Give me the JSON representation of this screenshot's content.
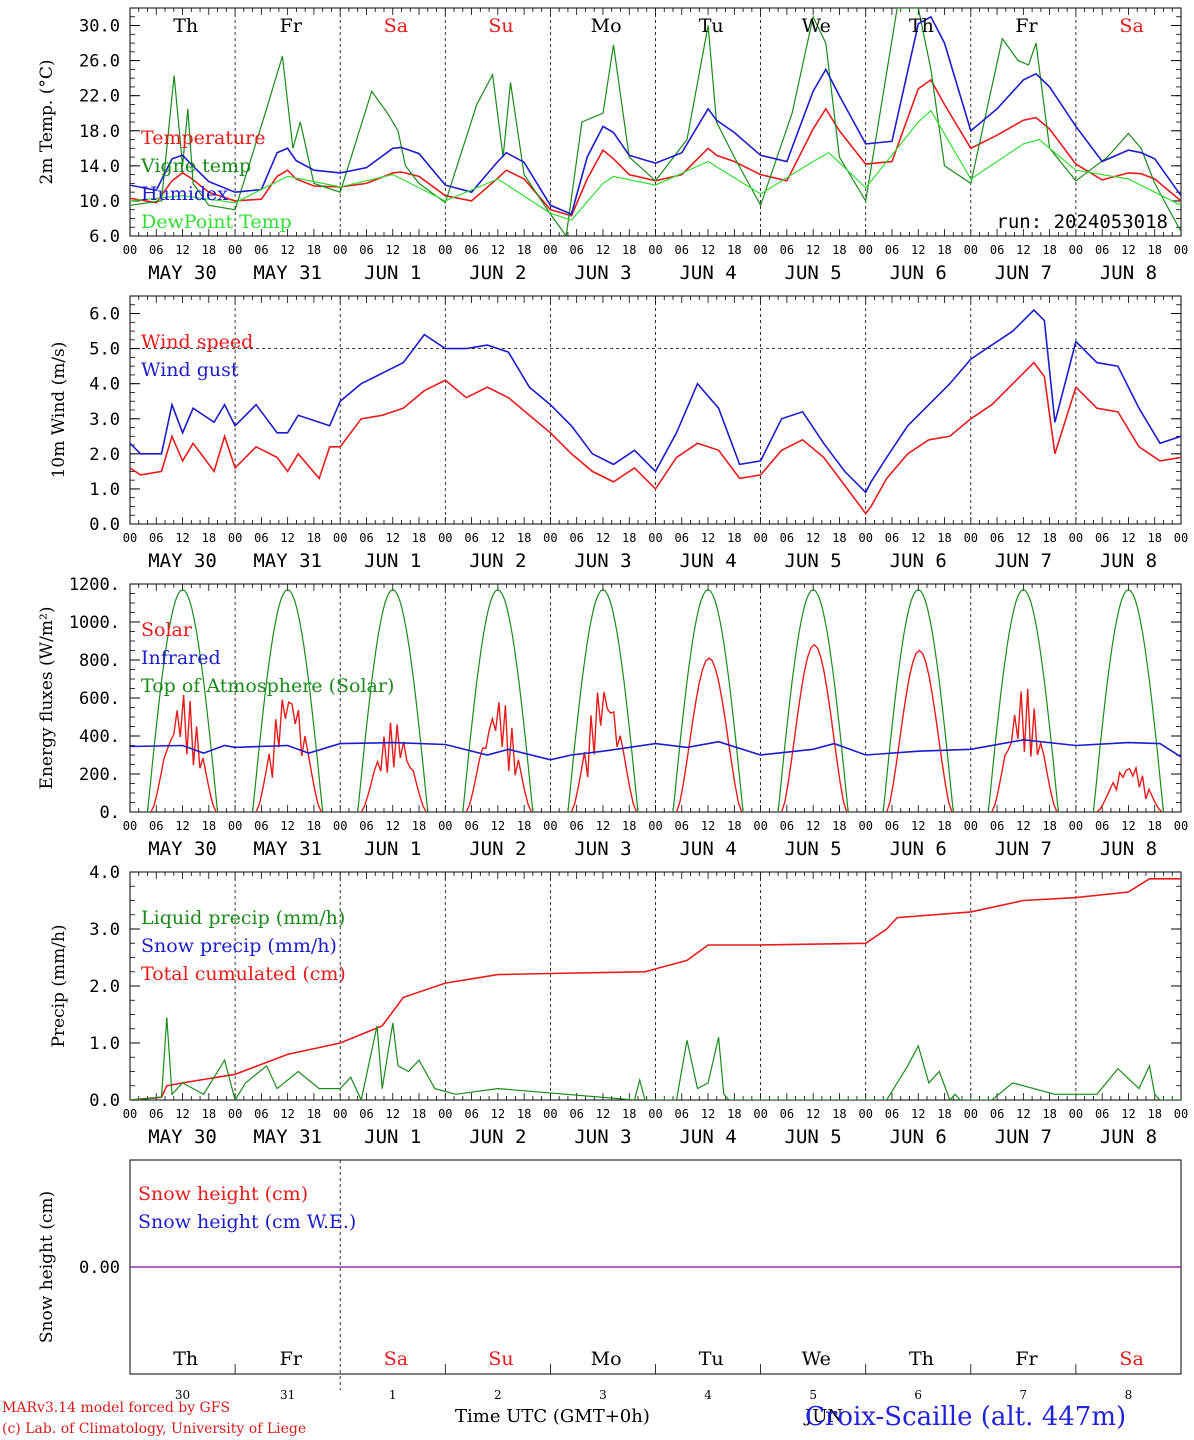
{
  "colors": {
    "red": "#e81b1b",
    "green": "#1a8a1a",
    "blue": "#1c1ccc",
    "lightgreen": "#33dd33",
    "purple": "#8833aa"
  },
  "days": [
    "Th",
    "Fr",
    "Sa",
    "Su",
    "Mo",
    "Tu",
    "We",
    "Th",
    "Fr",
    "Sa"
  ],
  "weekend_days": [
    "Sa",
    "Su"
  ],
  "hour_ticks": [
    "00",
    "06",
    "12",
    "18"
  ],
  "date_labels": [
    "MAY 30",
    "MAY 31",
    "JUN  1",
    "JUN  2",
    "JUN  3",
    "JUN  4",
    "JUN  5",
    "JUN  6",
    "JUN  7",
    "JUN  8"
  ],
  "snow_day_numbers": [
    "30",
    "31",
    "1",
    "2",
    "3",
    "4",
    "5",
    "6",
    "7",
    "8"
  ],
  "run_label": "run: 2024053018",
  "footer": {
    "model_line1": "MARv3.14 model forced by GFS",
    "model_line2": "(c) Lab. of Climatology, University of Liege",
    "time_label": "Time UTC (GMT+0h)",
    "month_label": "JUN",
    "station": "Croix-Scaille (alt. 447m)"
  },
  "chart_data": [
    {
      "id": "temperature",
      "type": "line",
      "ylabel": "2m Temp. (°C)",
      "ylim": [
        6.0,
        32.0
      ],
      "yticks": [
        6.0,
        10.0,
        14.0,
        18.0,
        22.0,
        26.0,
        30.0
      ],
      "ytick_labels": [
        "6.0",
        "10.0",
        "14.0",
        "18.0",
        "22.0",
        "26.0",
        "30.0"
      ],
      "xlim_days": [
        0,
        10
      ],
      "legend": [
        "Temperature",
        "Vigne temp",
        "Humidex",
        "DewPoint Temp"
      ],
      "series": [
        {
          "name": "Temperature",
          "color": "red",
          "x": [
            0,
            0.25,
            0.4,
            0.5,
            0.58,
            0.75,
            1,
            1.25,
            1.4,
            1.5,
            1.58,
            1.75,
            2,
            2.25,
            2.5,
            2.58,
            2.75,
            3,
            3.25,
            3.5,
            3.58,
            3.75,
            4,
            4.2,
            4.35,
            4.5,
            4.6,
            4.75,
            5,
            5.25,
            5.5,
            5.58,
            5.75,
            6,
            6.25,
            6.5,
            6.62,
            6.75,
            7,
            7.25,
            7.5,
            7.62,
            7.75,
            8,
            8.25,
            8.5,
            8.62,
            8.75,
            9,
            9.25,
            9.5,
            9.62,
            9.75,
            10
          ],
          "values": [
            10.3,
            9.8,
            12.3,
            13.2,
            12.6,
            11,
            10,
            10.2,
            12.8,
            13.5,
            12.5,
            11.7,
            11.6,
            12,
            13.2,
            13.3,
            12.8,
            10.6,
            10,
            12.6,
            13.5,
            12.5,
            9,
            8.3,
            12.5,
            15.8,
            14.8,
            13,
            12.3,
            13,
            16,
            15.2,
            14.5,
            13,
            12.3,
            18.2,
            20.5,
            18,
            14.2,
            14.5,
            22.8,
            23.8,
            21,
            16,
            17.5,
            19.2,
            19.5,
            18.2,
            14.2,
            12.4,
            13.2,
            13.1,
            12.5,
            10
          ]
        },
        {
          "name": "Vigne temp",
          "color": "green",
          "x": [
            0,
            0.3,
            0.42,
            0.5,
            0.55,
            0.6,
            0.75,
            1,
            1.3,
            1.45,
            1.55,
            1.62,
            1.75,
            2,
            2.3,
            2.45,
            2.55,
            2.62,
            2.75,
            3,
            3.3,
            3.45,
            3.55,
            3.62,
            3.75,
            4,
            4.15,
            4.3,
            4.5,
            4.6,
            4.75,
            5,
            5.3,
            5.5,
            5.58,
            5.75,
            6,
            6.3,
            6.5,
            6.62,
            6.75,
            7,
            7.3,
            7.5,
            7.62,
            7.75,
            8,
            8.3,
            8.45,
            8.55,
            8.62,
            8.75,
            9,
            9.3,
            9.5,
            9.62,
            9.75,
            10
          ],
          "values": [
            9.5,
            10,
            24.3,
            14,
            20.5,
            12,
            9.5,
            9,
            20.5,
            26.5,
            16,
            19,
            12,
            11,
            22.5,
            20,
            18,
            14,
            12,
            9.8,
            21,
            24.4,
            15,
            23.5,
            13,
            8.5,
            6,
            19,
            20,
            27.8,
            15,
            12.3,
            17,
            30,
            19,
            15,
            9.5,
            20,
            31,
            28,
            15,
            10,
            32,
            32,
            25,
            14,
            12,
            28.5,
            26,
            25.5,
            28,
            16,
            12.3,
            15,
            17.7,
            16,
            12,
            6.5
          ]
        },
        {
          "name": "Humidex",
          "color": "blue",
          "x": [
            0,
            0.25,
            0.4,
            0.5,
            0.58,
            0.75,
            1,
            1.25,
            1.4,
            1.5,
            1.58,
            1.75,
            2,
            2.25,
            2.5,
            2.58,
            2.75,
            3,
            3.25,
            3.5,
            3.58,
            3.75,
            4,
            4.2,
            4.35,
            4.5,
            4.6,
            4.75,
            5,
            5.25,
            5.5,
            5.58,
            5.75,
            6,
            6.25,
            6.5,
            6.62,
            6.75,
            7,
            7.25,
            7.5,
            7.62,
            7.75,
            8,
            8.25,
            8.5,
            8.62,
            8.75,
            9,
            9.25,
            9.5,
            9.62,
            9.75,
            10
          ],
          "values": [
            11.8,
            11.2,
            14.8,
            15.2,
            14.2,
            12.2,
            11,
            11.3,
            15.5,
            16,
            14.6,
            13.5,
            13.2,
            13.8,
            16,
            16.1,
            15.4,
            11.8,
            11,
            14.5,
            15.5,
            14.4,
            9.5,
            8.5,
            15,
            18.5,
            17.8,
            15.2,
            14.3,
            15.5,
            20.5,
            19.2,
            17.8,
            15.2,
            14.5,
            22.5,
            25,
            22,
            16.5,
            16.8,
            30.2,
            31,
            28,
            18,
            20.5,
            23.8,
            24.5,
            23,
            18.5,
            14.5,
            15.8,
            15.5,
            14.8,
            10.6
          ]
        },
        {
          "name": "DewPoint Temp",
          "color": "lightgreen",
          "x": [
            0,
            0.5,
            1,
            1.5,
            2,
            2.5,
            3,
            3.5,
            4,
            4.2,
            4.5,
            4.6,
            5,
            5.5,
            6,
            6.5,
            6.65,
            7,
            7.5,
            7.62,
            8,
            8.5,
            8.65,
            9,
            9.5,
            10
          ],
          "values": [
            10,
            10.6,
            9.8,
            12.8,
            11.6,
            13,
            10,
            12.5,
            8.6,
            7.8,
            12,
            12.8,
            11.8,
            14.5,
            10.8,
            14.5,
            15.5,
            11.5,
            19,
            20.3,
            12.5,
            16.5,
            17,
            13.5,
            12.5,
            9.5
          ]
        }
      ]
    },
    {
      "id": "wind",
      "type": "line",
      "ylabel": "10m Wind (m/s)",
      "ylim": [
        0.0,
        6.5
      ],
      "yticks": [
        0.0,
        1.0,
        2.0,
        3.0,
        4.0,
        5.0,
        6.0
      ],
      "ytick_labels": [
        "0.0",
        "1.0",
        "2.0",
        "3.0",
        "4.0",
        "5.0",
        "6.0"
      ],
      "hline": 5.0,
      "xlim_days": [
        0,
        10
      ],
      "legend": [
        "Wind speed",
        "Wind gust"
      ],
      "series": [
        {
          "name": "Wind speed",
          "color": "red",
          "x": [
            0,
            0.1,
            0.3,
            0.4,
            0.5,
            0.6,
            0.8,
            0.9,
            1,
            1.2,
            1.4,
            1.5,
            1.6,
            1.8,
            1.9,
            2,
            2.2,
            2.4,
            2.6,
            2.8,
            3,
            3.2,
            3.4,
            3.6,
            3.8,
            4,
            4.2,
            4.4,
            4.6,
            4.8,
            5,
            5.2,
            5.4,
            5.6,
            5.8,
            6,
            6.2,
            6.4,
            6.6,
            6.8,
            7,
            7.05,
            7.2,
            7.4,
            7.6,
            7.8,
            8,
            8.2,
            8.4,
            8.6,
            8.7,
            8.8,
            9,
            9.2,
            9.4,
            9.6,
            9.8,
            10
          ],
          "values": [
            1.6,
            1.4,
            1.5,
            2.5,
            1.8,
            2.3,
            1.5,
            2.5,
            1.6,
            2.2,
            1.9,
            1.5,
            2,
            1.3,
            2.2,
            2.2,
            3,
            3.1,
            3.3,
            3.8,
            4.1,
            3.6,
            3.9,
            3.6,
            3.1,
            2.6,
            2,
            1.5,
            1.2,
            1.6,
            1,
            1.9,
            2.3,
            2.1,
            1.3,
            1.4,
            2.1,
            2.4,
            1.9,
            1.1,
            0.3,
            0.5,
            1.3,
            2,
            2.4,
            2.5,
            3,
            3.4,
            4,
            4.6,
            4.2,
            2,
            3.9,
            3.3,
            3.2,
            2.2,
            1.8,
            1.9
          ]
        },
        {
          "name": "Wind gust",
          "color": "blue",
          "x": [
            0,
            0.1,
            0.3,
            0.4,
            0.5,
            0.6,
            0.8,
            0.9,
            1,
            1.2,
            1.4,
            1.5,
            1.6,
            1.8,
            1.9,
            2,
            2.2,
            2.4,
            2.6,
            2.8,
            3,
            3.2,
            3.4,
            3.6,
            3.8,
            4,
            4.2,
            4.4,
            4.6,
            4.8,
            5,
            5.2,
            5.4,
            5.6,
            5.8,
            6,
            6.2,
            6.4,
            6.6,
            6.8,
            7,
            7.05,
            7.2,
            7.4,
            7.6,
            7.8,
            8,
            8.2,
            8.4,
            8.6,
            8.7,
            8.8,
            9,
            9.2,
            9.4,
            9.6,
            9.8,
            10
          ],
          "values": [
            2.3,
            2,
            2,
            3.4,
            2.6,
            3.3,
            2.9,
            3.4,
            2.8,
            3.4,
            2.6,
            2.6,
            3.1,
            2.9,
            2.8,
            3.5,
            4,
            4.3,
            4.6,
            5.4,
            5,
            5,
            5.1,
            4.9,
            3.9,
            3.4,
            2.8,
            2,
            1.7,
            2.1,
            1.5,
            2.6,
            4,
            3.3,
            1.7,
            1.8,
            3,
            3.2,
            2.3,
            1.5,
            0.9,
            1.2,
            1.9,
            2.8,
            3.4,
            4,
            4.7,
            5.1,
            5.5,
            6.1,
            5.8,
            2.9,
            5.2,
            4.6,
            4.5,
            3.3,
            2.3,
            2.5
          ]
        }
      ]
    },
    {
      "id": "energy",
      "type": "line",
      "ylabel": "Energy fluxes (W/m²)",
      "ylim": [
        0,
        1200
      ],
      "yticks": [
        0,
        200,
        400,
        600,
        800,
        1000,
        1200
      ],
      "ytick_labels": [
        "0.",
        "200.",
        "400.",
        "600.",
        "800.",
        "1000.",
        "1200."
      ],
      "xlim_days": [
        0,
        10
      ],
      "legend": [
        "Solar",
        "Infrared",
        "Top of Atmosphere (Solar)"
      ],
      "toa_peak": 1170,
      "toa_daylight_hours": [
        4,
        20
      ],
      "solar_peaks": [
        630,
        680,
        480,
        610,
        700,
        810,
        880,
        850,
        660,
        265
      ],
      "series": [
        {
          "name": "Infrared",
          "color": "blue",
          "x": [
            0,
            0.5,
            0.7,
            0.9,
            1,
            1.5,
            1.7,
            2,
            2.5,
            3,
            3.4,
            3.6,
            4,
            4.2,
            4.5,
            5,
            5.3,
            5.6,
            6,
            6.5,
            6.7,
            7,
            7.5,
            8,
            8.5,
            9,
            9.5,
            9.8,
            10
          ],
          "values": [
            345,
            350,
            310,
            350,
            340,
            350,
            310,
            360,
            365,
            355,
            300,
            330,
            275,
            300,
            320,
            360,
            340,
            370,
            300,
            330,
            360,
            300,
            320,
            330,
            380,
            350,
            365,
            360,
            290
          ]
        }
      ]
    },
    {
      "id": "precip",
      "type": "line",
      "ylabel": "Precip (mm/h)",
      "ylim": [
        0.0,
        4.0
      ],
      "yticks": [
        0.0,
        1.0,
        2.0,
        3.0,
        4.0
      ],
      "ytick_labels": [
        "0.0",
        "1.0",
        "2.0",
        "3.0",
        "4.0"
      ],
      "xlim_days": [
        0,
        10
      ],
      "legend": [
        "Liquid precip (mm/h)",
        "Snow precip (mm/h)",
        "Total cumulated (cm)"
      ],
      "series": [
        {
          "name": "Total cumulated (cm)",
          "color": "red",
          "x": [
            0,
            0.3,
            0.35,
            0.5,
            1,
            1.5,
            2,
            2.4,
            2.6,
            3,
            3.5,
            4,
            4.9,
            5,
            5.3,
            5.5,
            6,
            7,
            7.2,
            7.3,
            8,
            8.5,
            9,
            9.5,
            9.7,
            10
          ],
          "values": [
            0,
            0.05,
            0.25,
            0.3,
            0.45,
            0.8,
            1,
            1.3,
            1.8,
            2.05,
            2.2,
            2.22,
            2.25,
            2.3,
            2.45,
            2.72,
            2.72,
            2.75,
            3,
            3.2,
            3.3,
            3.5,
            3.55,
            3.65,
            3.88,
            3.88
          ]
        },
        {
          "name": "Liquid precip (mm/h)",
          "color": "green",
          "x": [
            0,
            0.3,
            0.35,
            0.4,
            0.5,
            0.6,
            0.7,
            0.9,
            1,
            1.1,
            1.3,
            1.4,
            1.6,
            1.8,
            2,
            2.1,
            2.2,
            2.35,
            2.4,
            2.5,
            2.55,
            2.65,
            2.75,
            2.9,
            3.1,
            3.5,
            4.8,
            4.85,
            4.9,
            5.2,
            5.3,
            5.4,
            5.5,
            5.6,
            5.65,
            5.7,
            5.8,
            7.2,
            7.4,
            7.5,
            7.6,
            7.7,
            7.8,
            7.85,
            7.9,
            8.2,
            8.4,
            8.8,
            9.2,
            9.4,
            9.6,
            9.7,
            9.75,
            9.8,
            10
          ],
          "values": [
            0,
            0.05,
            1.45,
            0.1,
            0.3,
            0.2,
            0.1,
            0.7,
            0,
            0.3,
            0.6,
            0.2,
            0.5,
            0.2,
            0.2,
            0.4,
            0,
            1.3,
            0.2,
            1.35,
            0.6,
            0.5,
            0.7,
            0.2,
            0.1,
            0.2,
            0,
            0.35,
            0,
            0,
            1.05,
            0.2,
            0.3,
            1.1,
            0.1,
            0,
            0,
            0,
            0.6,
            0.95,
            0.3,
            0.5,
            0,
            0.1,
            0,
            0,
            0.3,
            0.1,
            0.1,
            0.55,
            0.2,
            0.6,
            0.1,
            0,
            0
          ]
        }
      ]
    },
    {
      "id": "snow",
      "type": "line",
      "ylabel": "Snow height (cm)",
      "ylim": [
        -1,
        1
      ],
      "yticks": [
        0.0
      ],
      "ytick_labels": [
        "0.00"
      ],
      "xlim_days": [
        0,
        10
      ],
      "legend": [
        "Snow height (cm)",
        "Snow height (cm W.E.)"
      ],
      "series": [
        {
          "name": "Snow height (cm)",
          "color": "purple",
          "x": [
            0,
            10
          ],
          "values": [
            0,
            0
          ]
        }
      ]
    }
  ]
}
